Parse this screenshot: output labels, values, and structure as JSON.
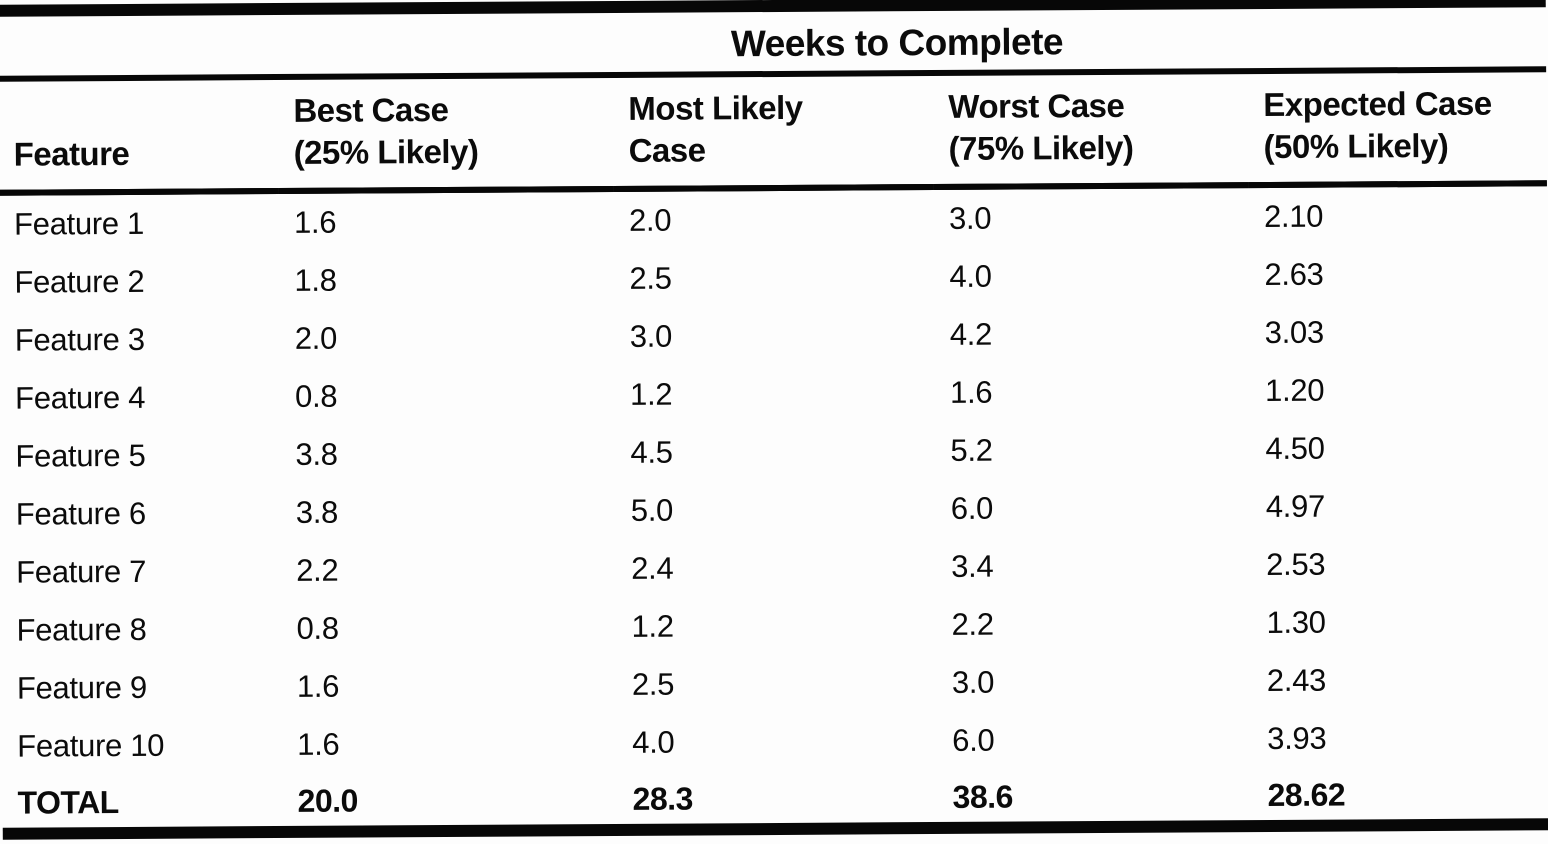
{
  "table": {
    "title": "Weeks to Complete",
    "columns": [
      {
        "id": "feature",
        "lines": [
          "Feature"
        ]
      },
      {
        "id": "best",
        "lines": [
          "Best Case",
          "(25% Likely)"
        ]
      },
      {
        "id": "most_likely",
        "lines": [
          "Most Likely",
          "Case"
        ]
      },
      {
        "id": "worst",
        "lines": [
          "Worst Case",
          "(75% Likely)"
        ]
      },
      {
        "id": "expected",
        "lines": [
          "Expected Case",
          "(50% Likely)"
        ]
      }
    ],
    "rows": [
      {
        "feature": "Feature 1",
        "best": "1.6",
        "most_likely": "2.0",
        "worst": "3.0",
        "expected": "2.10"
      },
      {
        "feature": "Feature 2",
        "best": "1.8",
        "most_likely": "2.5",
        "worst": "4.0",
        "expected": "2.63"
      },
      {
        "feature": "Feature 3",
        "best": "2.0",
        "most_likely": "3.0",
        "worst": "4.2",
        "expected": "3.03"
      },
      {
        "feature": "Feature 4",
        "best": "0.8",
        "most_likely": "1.2",
        "worst": "1.6",
        "expected": "1.20"
      },
      {
        "feature": "Feature 5",
        "best": "3.8",
        "most_likely": "4.5",
        "worst": "5.2",
        "expected": "4.50"
      },
      {
        "feature": "Feature 6",
        "best": "3.8",
        "most_likely": "5.0",
        "worst": "6.0",
        "expected": "4.97"
      },
      {
        "feature": "Feature 7",
        "best": "2.2",
        "most_likely": "2.4",
        "worst": "3.4",
        "expected": "2.53"
      },
      {
        "feature": "Feature 8",
        "best": "0.8",
        "most_likely": "1.2",
        "worst": "2.2",
        "expected": "1.30"
      },
      {
        "feature": "Feature 9",
        "best": "1.6",
        "most_likely": "2.5",
        "worst": "3.0",
        "expected": "2.43"
      },
      {
        "feature": "Feature 10",
        "best": "1.6",
        "most_likely": "4.0",
        "worst": "6.0",
        "expected": "3.93"
      }
    ],
    "total": {
      "feature": "TOTAL",
      "best": "20.0",
      "most_likely": "28.3",
      "worst": "38.6",
      "expected": "28.62"
    },
    "ink_color": "#070707"
  },
  "chart_data": {
    "type": "table",
    "title": "Weeks to Complete",
    "columns": [
      "Feature",
      "Best Case (25% Likely)",
      "Most Likely Case",
      "Worst Case (75% Likely)",
      "Expected Case (50% Likely)"
    ],
    "rows": [
      [
        "Feature 1",
        1.6,
        2.0,
        3.0,
        2.1
      ],
      [
        "Feature 2",
        1.8,
        2.5,
        4.0,
        2.63
      ],
      [
        "Feature 3",
        2.0,
        3.0,
        4.2,
        3.03
      ],
      [
        "Feature 4",
        0.8,
        1.2,
        1.6,
        1.2
      ],
      [
        "Feature 5",
        3.8,
        4.5,
        5.2,
        4.5
      ],
      [
        "Feature 6",
        3.8,
        5.0,
        6.0,
        4.97
      ],
      [
        "Feature 7",
        2.2,
        2.4,
        3.4,
        2.53
      ],
      [
        "Feature 8",
        0.8,
        1.2,
        2.2,
        1.3
      ],
      [
        "Feature 9",
        1.6,
        2.5,
        3.0,
        2.43
      ],
      [
        "Feature 10",
        1.6,
        4.0,
        6.0,
        3.93
      ],
      [
        "TOTAL",
        20.0,
        28.3,
        38.6,
        28.62
      ]
    ]
  }
}
